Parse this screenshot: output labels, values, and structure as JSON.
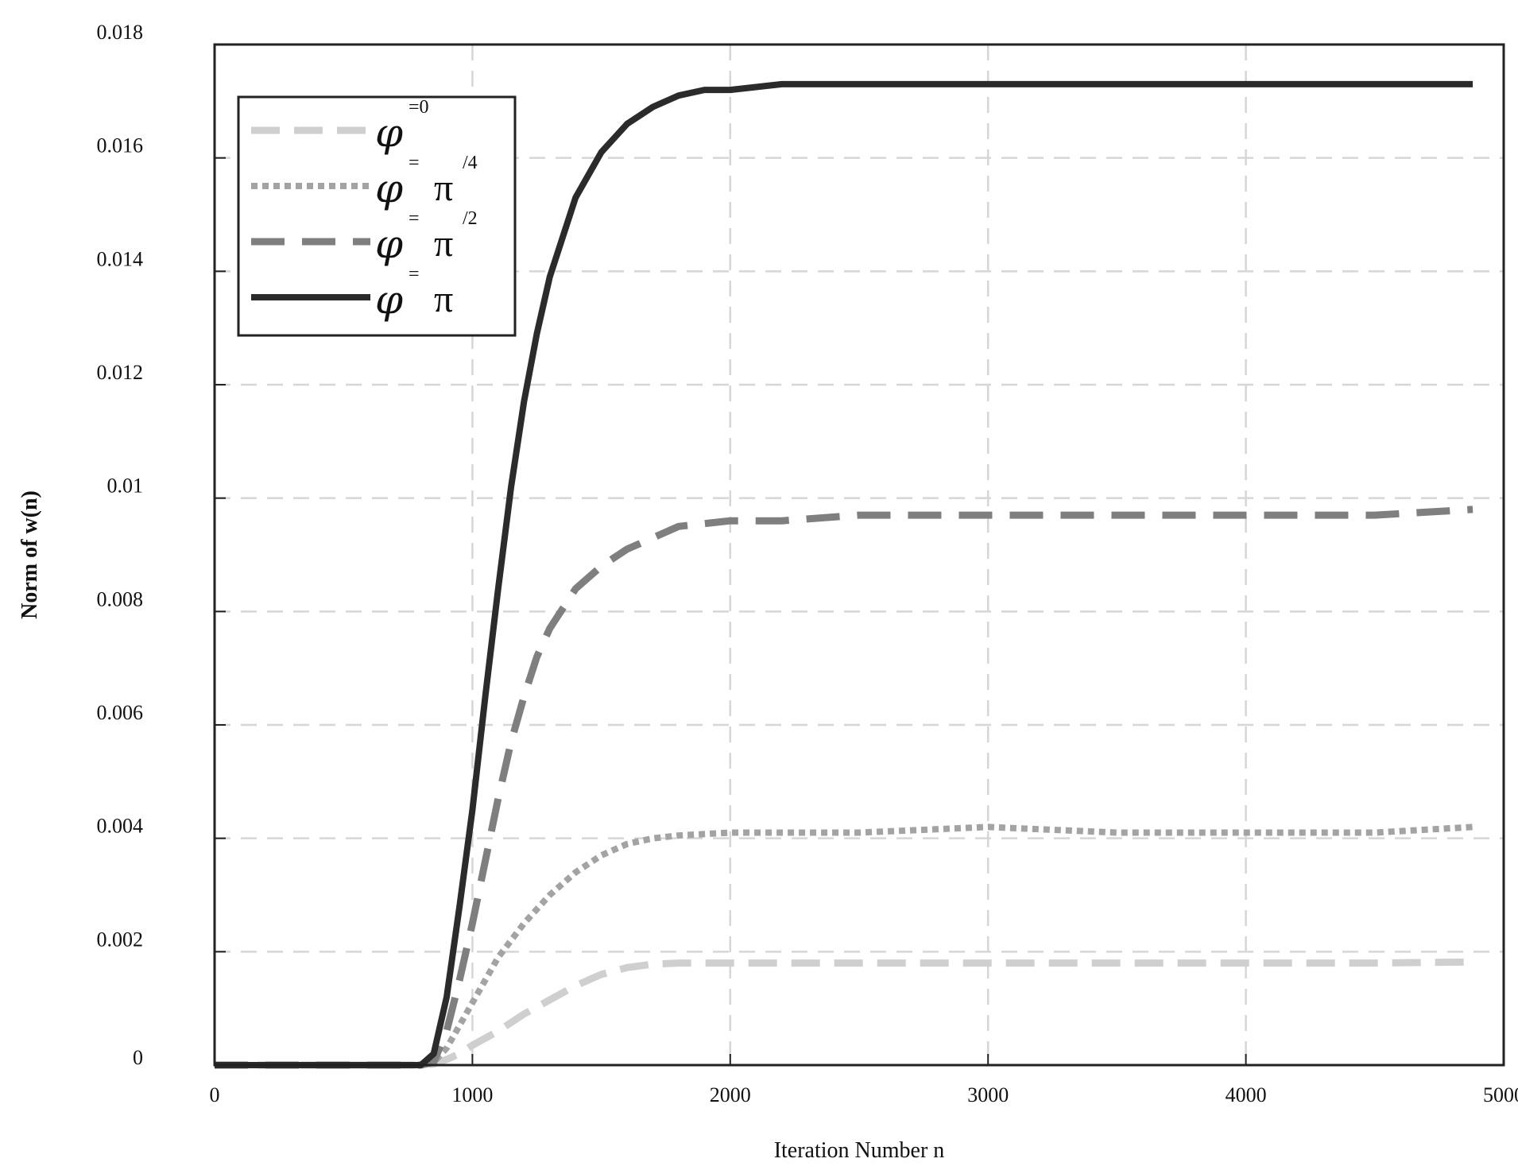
{
  "chart_data": {
    "type": "line",
    "xlabel": "Iteration Number n",
    "ylabel": "Norm of w(n)",
    "xlim": [
      0,
      5000
    ],
    "ylim": [
      0,
      0.018
    ],
    "x_ticks": [
      0,
      1000,
      2000,
      3000,
      4000,
      5000
    ],
    "x_tick_labels": [
      "0",
      "1000",
      "2000",
      "3000",
      "4000",
      "5000"
    ],
    "y_ticks": [
      0,
      0.002,
      0.004,
      0.006,
      0.008,
      0.01,
      0.012,
      0.014,
      0.016,
      0.018
    ],
    "y_tick_labels": [
      "0",
      "0.002",
      "0.004",
      "0.006",
      "0.008",
      "0.01",
      "0.012",
      "0.014",
      "0.016",
      "0.018"
    ],
    "grid": true,
    "legend_position": "top-left",
    "series": [
      {
        "name": "φ =0",
        "legend_symbol": "φ",
        "legend_eq": "=0",
        "legend_const": "",
        "legend_frac": "",
        "color": "#cfcfcf",
        "style": "dashed",
        "x": [
          0,
          800,
          850,
          900,
          950,
          1000,
          1100,
          1200,
          1300,
          1400,
          1500,
          1600,
          1700,
          1800,
          2000,
          2500,
          3000,
          3500,
          4000,
          4500,
          4880
        ],
        "y": [
          0,
          0,
          2e-05,
          0.0001,
          0.0002,
          0.00035,
          0.0006,
          0.0009,
          0.00115,
          0.0014,
          0.0016,
          0.00172,
          0.00178,
          0.0018,
          0.0018,
          0.0018,
          0.0018,
          0.0018,
          0.0018,
          0.0018,
          0.00182
        ]
      },
      {
        "name": "φ = π/4",
        "legend_symbol": "φ",
        "legend_eq": "=",
        "legend_const": "π",
        "legend_frac": "/4",
        "color": "#a3a3a3",
        "style": "dotted",
        "x": [
          0,
          800,
          850,
          900,
          950,
          1000,
          1050,
          1100,
          1200,
          1300,
          1400,
          1500,
          1600,
          1700,
          1800,
          2000,
          2500,
          3000,
          3500,
          4000,
          4500,
          4880
        ],
        "y": [
          0,
          0,
          5e-05,
          0.0003,
          0.0007,
          0.0011,
          0.0015,
          0.0019,
          0.0025,
          0.003,
          0.0034,
          0.0037,
          0.0039,
          0.004,
          0.00405,
          0.0041,
          0.0041,
          0.0042,
          0.0041,
          0.0041,
          0.0041,
          0.0042
        ]
      },
      {
        "name": "φ = π/2",
        "legend_symbol": "φ",
        "legend_eq": "=",
        "legend_const": "π",
        "legend_frac": "/2",
        "color": "#7f7f7f",
        "style": "dashed-long",
        "x": [
          0,
          800,
          850,
          900,
          950,
          1000,
          1050,
          1100,
          1150,
          1200,
          1250,
          1300,
          1400,
          1500,
          1600,
          1700,
          1800,
          2000,
          2200,
          2500,
          3000,
          3500,
          4000,
          4500,
          4880
        ],
        "y": [
          0,
          0,
          5e-05,
          0.0006,
          0.0015,
          0.0025,
          0.0036,
          0.0047,
          0.0057,
          0.0065,
          0.0072,
          0.0077,
          0.0084,
          0.0088,
          0.0091,
          0.0093,
          0.0095,
          0.0096,
          0.0096,
          0.0097,
          0.0097,
          0.0097,
          0.0097,
          0.0097,
          0.0098
        ]
      },
      {
        "name": "φ = π",
        "legend_symbol": "φ",
        "legend_eq": "=",
        "legend_const": "π",
        "legend_frac": "",
        "color": "#2b2b2b",
        "style": "solid",
        "x": [
          0,
          800,
          850,
          900,
          950,
          1000,
          1050,
          1100,
          1150,
          1200,
          1250,
          1300,
          1400,
          1500,
          1600,
          1700,
          1800,
          1900,
          2000,
          2200,
          2500,
          3000,
          3500,
          4000,
          4500,
          4880
        ],
        "y": [
          0,
          0,
          0.0002,
          0.0012,
          0.0028,
          0.0045,
          0.0065,
          0.0084,
          0.0102,
          0.0117,
          0.0129,
          0.0139,
          0.0153,
          0.0161,
          0.0166,
          0.0169,
          0.0171,
          0.0172,
          0.0172,
          0.0173,
          0.0173,
          0.0173,
          0.0173,
          0.0173,
          0.0173,
          0.0173
        ]
      }
    ]
  }
}
